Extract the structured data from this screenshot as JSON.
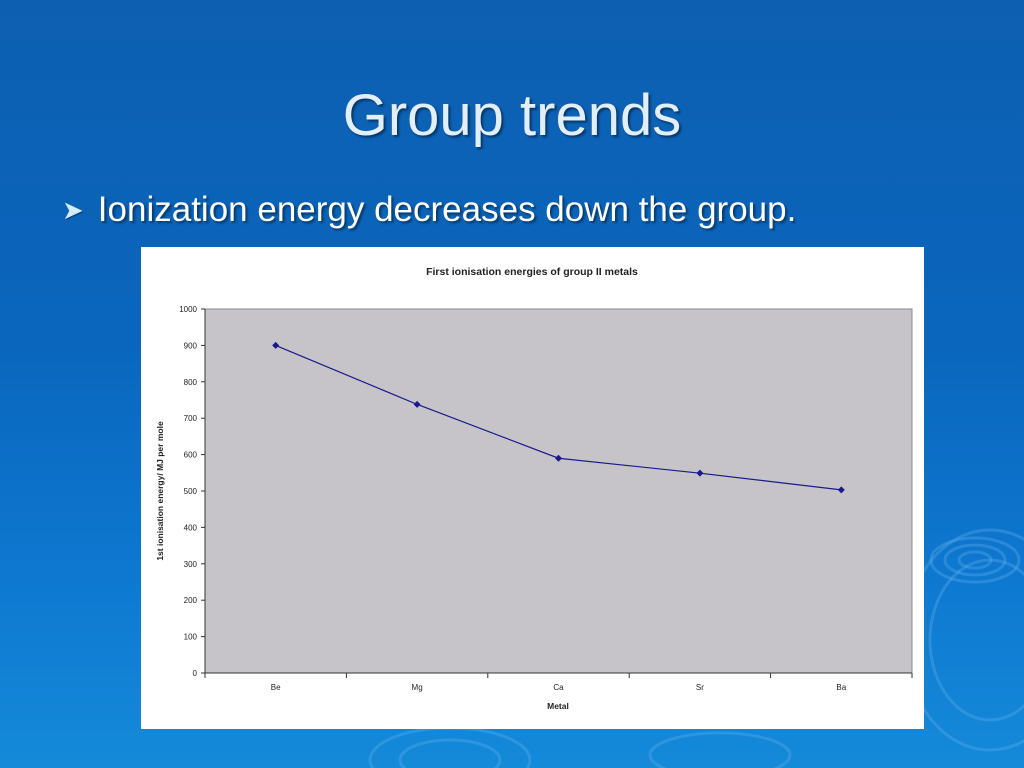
{
  "slide": {
    "title": "Group trends",
    "bullet": "Ionization energy decreases down the group."
  },
  "colors": {
    "accent": "#0a66bd",
    "plot_area": "#c6c4c8",
    "series": "#1a1a8c"
  },
  "chart_data": {
    "type": "line",
    "title": "First ionisation energies of group II metals",
    "xlabel": "Metal",
    "ylabel": "1st ionisation energy/ MJ per mole",
    "categories": [
      "Be",
      "Mg",
      "Ca",
      "Sr",
      "Ba"
    ],
    "series": [
      {
        "values": [
          900,
          738,
          590,
          549,
          503
        ]
      }
    ],
    "ylim": [
      0,
      1000
    ],
    "yticks": [
      "0",
      "100",
      "200",
      "300",
      "400",
      "500",
      "600",
      "700",
      "800",
      "900",
      "1000"
    ],
    "grid": false,
    "legend": "none"
  }
}
